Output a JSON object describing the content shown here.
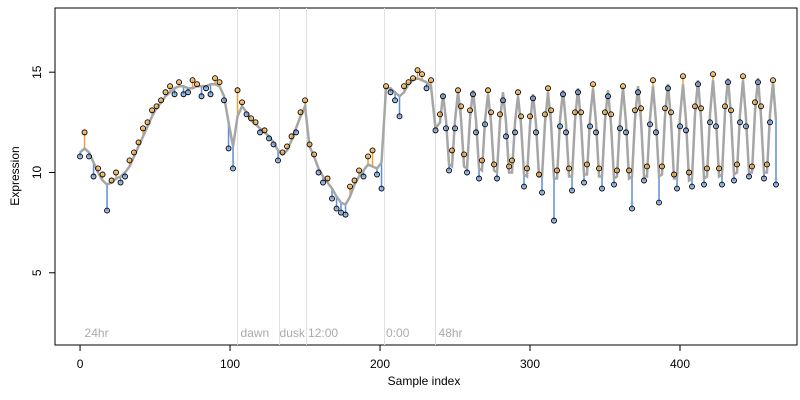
{
  "chart_data": {
    "type": "scatter",
    "xlabel": "Sample index",
    "ylabel": "Expression",
    "xlim": [
      -16.7,
      478
    ],
    "ylim": [
      1.4,
      18.2
    ],
    "xticks": [
      0,
      100,
      200,
      300,
      400
    ],
    "yticks": [
      5,
      10,
      15
    ],
    "vlines": [
      105,
      133,
      151,
      203,
      237
    ],
    "vline_color": "#e0e0e0",
    "annotations": [
      {
        "x": 3,
        "text": "24hr"
      },
      {
        "x": 107,
        "text": "dawn"
      },
      {
        "x": 133,
        "text": "dusk"
      },
      {
        "x": 152,
        "text": "12:00"
      },
      {
        "x": 204,
        "text": "0:00"
      },
      {
        "x": 239,
        "text": "48hr"
      }
    ],
    "residual_colors": {
      "above": "#f0a030",
      "below": "#5b8fd6"
    },
    "x": [
      0,
      3,
      6,
      9,
      12,
      15,
      18,
      21,
      24,
      27,
      30,
      33,
      36,
      39,
      42,
      45,
      48,
      51,
      54,
      57,
      60,
      63,
      66,
      69,
      72,
      75,
      78,
      81,
      84,
      87,
      90,
      93,
      96,
      99,
      102,
      105,
      108,
      111,
      114,
      117,
      120,
      123,
      126,
      129,
      132,
      135,
      138,
      141,
      144,
      147,
      150,
      153,
      156,
      159,
      162,
      165,
      168,
      171,
      174,
      177,
      180,
      183,
      186,
      189,
      192,
      195,
      198,
      201,
      204,
      207,
      210,
      213,
      216,
      219,
      222,
      225,
      228,
      231,
      234,
      237,
      240,
      242,
      244,
      246,
      248,
      250,
      252,
      254,
      256,
      258,
      260,
      262,
      264,
      266,
      268,
      270,
      272,
      274,
      276,
      278,
      280,
      282,
      284,
      286,
      288,
      290,
      292,
      294,
      296,
      298,
      300,
      302,
      304,
      306,
      308,
      310,
      312,
      314,
      316,
      318,
      320,
      322,
      324,
      326,
      328,
      330,
      332,
      334,
      336,
      338,
      340,
      342,
      344,
      346,
      348,
      350,
      352,
      354,
      356,
      358,
      360,
      362,
      364,
      366,
      368,
      370,
      372,
      374,
      376,
      378,
      380,
      382,
      384,
      386,
      388,
      390,
      392,
      394,
      396,
      398,
      400,
      402,
      404,
      406,
      408,
      410,
      412,
      414,
      416,
      418,
      420,
      422,
      424,
      426,
      428,
      430,
      432,
      434,
      436,
      438,
      440,
      442,
      444,
      446,
      448,
      450,
      452,
      454,
      456,
      458,
      460,
      462,
      464
    ],
    "series": [
      {
        "style": "points",
        "color": "#000000",
        "values": [
          10.8,
          12.0,
          10.8,
          9.8,
          10.2,
          9.9,
          8.1,
          9.6,
          10.0,
          9.5,
          9.8,
          10.6,
          11.0,
          11.5,
          12.2,
          12.5,
          13.1,
          13.3,
          13.6,
          14.0,
          14.3,
          13.9,
          14.5,
          13.9,
          14.0,
          14.6,
          14.4,
          13.8,
          14.2,
          13.9,
          14.7,
          14.5,
          13.6,
          11.2,
          10.2,
          14.1,
          13.5,
          12.9,
          12.7,
          12.5,
          12.0,
          12.1,
          11.7,
          11.4,
          10.6,
          11.0,
          11.3,
          11.8,
          12.0,
          13.0,
          13.6,
          11.4,
          10.9,
          10.0,
          9.5,
          9.7,
          8.7,
          8.2,
          8.0,
          7.9,
          9.3,
          9.6,
          10.1,
          9.8,
          10.8,
          11.1,
          9.9,
          9.2,
          14.3,
          14.0,
          13.6,
          12.8,
          14.3,
          14.5,
          14.7,
          15.1,
          14.9,
          14.2,
          14.6,
          12.1,
          12.9,
          13.8,
          12.2,
          10.1,
          11.1,
          12.2,
          14.1,
          13.3,
          10.9,
          10.0,
          13.1,
          13.9,
          12.0,
          9.7,
          10.6,
          12.4,
          14.1,
          13.0,
          10.4,
          9.7,
          12.9,
          13.6,
          11.8,
          10.3,
          10.6,
          12.0,
          14.0,
          12.8,
          9.3,
          10.2,
          12.8,
          13.7,
          12.0,
          9.9,
          9.0,
          12.9,
          14.2,
          13.1,
          7.6,
          10.1,
          12.3,
          13.9,
          12.0,
          10.2,
          9.1,
          13.0,
          14.0,
          13.0,
          9.5,
          10.4,
          12.3,
          14.4,
          12.0,
          10.2,
          9.2,
          13.0,
          13.8,
          12.9,
          9.4,
          10.1,
          12.2,
          14.3,
          12.0,
          10.1,
          8.2,
          13.1,
          14.0,
          13.2,
          9.6,
          10.3,
          12.4,
          14.6,
          12.0,
          8.5,
          10.3,
          13.2,
          14.2,
          13.0,
          9.9,
          9.2,
          12.3,
          14.8,
          12.1,
          10.0,
          9.3,
          13.3,
          14.4,
          13.2,
          9.4,
          10.2,
          12.5,
          14.9,
          12.3,
          10.2,
          9.4,
          13.3,
          14.5,
          13.1,
          9.6,
          10.4,
          12.5,
          14.8,
          12.3,
          9.8,
          10.3,
          13.5,
          14.5,
          13.3,
          9.7,
          10.4,
          12.5,
          14.6,
          9.4
        ]
      },
      {
        "style": "line",
        "color": "#a6a6a6",
        "values": [
          11.0,
          11.2,
          11.0,
          10.5,
          10.0,
          9.6,
          9.4,
          9.5,
          9.7,
          9.8,
          10.0,
          10.3,
          10.8,
          11.3,
          11.8,
          12.3,
          12.8,
          13.2,
          13.5,
          13.8,
          14.0,
          14.2,
          14.3,
          14.3,
          14.2,
          14.2,
          14.3,
          14.3,
          14.3,
          14.4,
          14.4,
          14.3,
          13.8,
          12.5,
          11.3,
          12.8,
          13.3,
          13.0,
          12.6,
          12.4,
          12.2,
          12.0,
          11.8,
          11.5,
          11.1,
          10.9,
          11.1,
          11.6,
          12.2,
          12.8,
          13.3,
          11.3,
          10.8,
          10.2,
          9.8,
          9.5,
          9.2,
          8.8,
          8.5,
          8.4,
          8.8,
          9.4,
          9.8,
          10.1,
          10.4,
          10.3,
          10.2,
          10.5,
          14.2,
          14.2,
          14.0,
          13.8,
          14.0,
          14.4,
          14.6,
          14.7,
          14.6,
          14.5,
          14.3,
          12.2,
          12.5,
          13.9,
          12.6,
          10.4,
          10.3,
          12.6,
          14.0,
          12.7,
          10.3,
          10.2,
          12.7,
          14.1,
          12.6,
          10.2,
          10.1,
          12.6,
          13.9,
          12.5,
          10.1,
          10.0,
          12.6,
          14.0,
          12.5,
          10.0,
          10.0,
          12.5,
          13.8,
          12.4,
          9.9,
          9.8,
          12.4,
          13.9,
          12.4,
          9.8,
          9.8,
          12.5,
          14.0,
          12.5,
          9.7,
          9.7,
          12.6,
          14.1,
          12.4,
          9.8,
          9.8,
          12.6,
          14.2,
          12.5,
          9.9,
          9.9,
          12.7,
          14.2,
          12.5,
          9.8,
          9.8,
          12.6,
          14.1,
          12.4,
          9.7,
          9.8,
          12.6,
          14.2,
          12.5,
          9.7,
          9.8,
          12.7,
          14.3,
          12.6,
          9.8,
          9.8,
          12.7,
          14.3,
          12.5,
          9.8,
          9.9,
          12.8,
          14.4,
          12.6,
          9.7,
          9.7,
          12.8,
          14.4,
          12.6,
          9.6,
          9.7,
          12.9,
          14.6,
          12.7,
          9.7,
          9.8,
          12.9,
          14.6,
          12.7,
          9.8,
          9.9,
          13.0,
          14.7,
          12.8,
          9.9,
          10.0,
          12.9,
          14.6,
          12.7,
          10.0,
          10.0,
          13.0,
          14.7,
          12.8,
          10.0,
          10.0,
          12.9,
          14.5,
          12.6
        ]
      }
    ]
  }
}
